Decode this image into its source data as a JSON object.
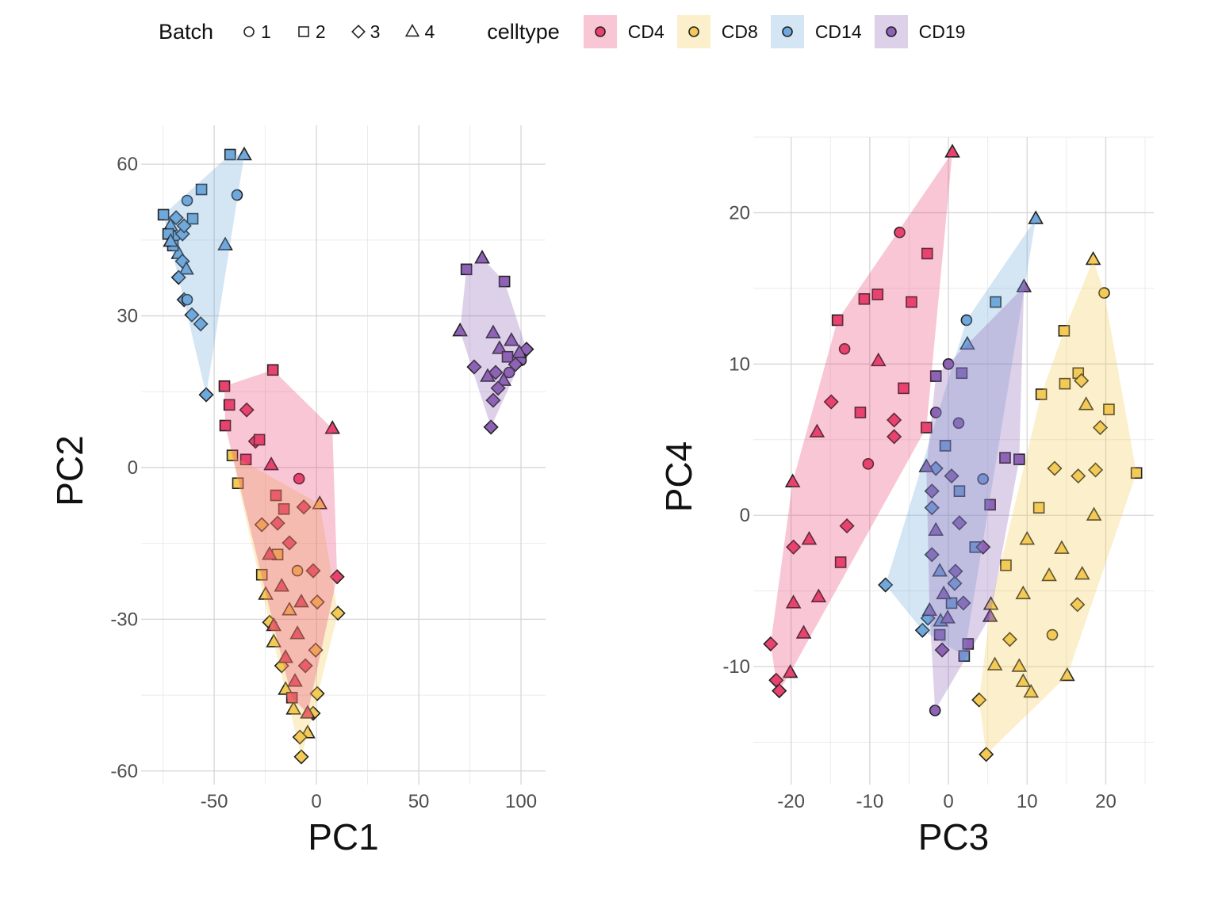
{
  "legend": {
    "batch_title": "Batch",
    "batches": [
      {
        "label": "1",
        "shape": "circle"
      },
      {
        "label": "2",
        "shape": "square"
      },
      {
        "label": "3",
        "shape": "diamond"
      },
      {
        "label": "4",
        "shape": "triangle"
      }
    ],
    "celltype_title": "celltype",
    "celltypes": [
      {
        "label": "CD4",
        "color": "#E8436F"
      },
      {
        "label": "CD8",
        "color": "#F2CA55"
      },
      {
        "label": "CD14",
        "color": "#6FA8DC"
      },
      {
        "label": "CD19",
        "color": "#8E63B5"
      }
    ]
  },
  "chart_data": [
    {
      "type": "scatter",
      "xlabel": "PC1",
      "ylabel": "PC2",
      "xlim": [
        -85.7,
        112
      ],
      "ylim": [
        -62.7,
        67.7
      ],
      "xticks": [
        -50,
        0,
        50,
        100
      ],
      "yticks": [
        -60,
        -30,
        0,
        30,
        60
      ],
      "xminor": [
        -75,
        -25,
        25,
        75
      ],
      "yminor": [
        -45,
        -15,
        15,
        45
      ],
      "grid": true,
      "hulls": true,
      "series": [
        {
          "celltype": "CD14",
          "points": [
            [
              -42.2,
              61.9,
              2
            ],
            [
              -35.3,
              61.8,
              4
            ],
            [
              -56.2,
              55.0,
              2
            ],
            [
              -63.2,
              52.8,
              1
            ],
            [
              -38.8,
              53.9,
              1
            ],
            [
              -74.8,
              50.0,
              2
            ],
            [
              -60.5,
              49.2,
              2
            ],
            [
              -44.6,
              44.0,
              4
            ],
            [
              -53.9,
              14.4,
              3
            ],
            [
              -60.9,
              30.2,
              3
            ],
            [
              -56.6,
              28.4,
              3
            ],
            [
              -64.7,
              33.2,
              3
            ],
            [
              -63.2,
              33.2,
              1
            ],
            [
              -71.3,
              47.8,
              4
            ],
            [
              -69.4,
              45.5,
              3
            ],
            [
              -67.4,
              42.3,
              4
            ],
            [
              -65.5,
              40.8,
              3
            ],
            [
              -70.2,
              43.9,
              2
            ],
            [
              -63.6,
              39.2,
              4
            ],
            [
              -67.4,
              37.6,
              3
            ],
            [
              -72.5,
              46.2,
              2
            ],
            [
              -65.5,
              46.2,
              3
            ],
            [
              -68.6,
              49.4,
              3
            ],
            [
              -64.7,
              47.8,
              3
            ],
            [
              -71.3,
              44.7,
              4
            ]
          ]
        },
        {
          "celltype": "CD19",
          "points": [
            [
              81.0,
              41.4,
              4
            ],
            [
              73.3,
              39.2,
              2
            ],
            [
              91.9,
              36.8,
              2
            ],
            [
              70.2,
              27.0,
              4
            ],
            [
              77.1,
              19.9,
              3
            ],
            [
              85.3,
              8.0,
              3
            ],
            [
              86.4,
              26.6,
              4
            ],
            [
              102.7,
              23.4,
              3
            ],
            [
              100.0,
              21.2,
              1
            ],
            [
              89.5,
              23.5,
              4
            ],
            [
              93.4,
              21.9,
              2
            ],
            [
              87.6,
              18.8,
              3
            ],
            [
              95.3,
              25.1,
              4
            ],
            [
              97.3,
              20.4,
              3
            ],
            [
              91.5,
              17.2,
              4
            ],
            [
              88.8,
              15.7,
              3
            ],
            [
              86.4,
              13.3,
              3
            ],
            [
              99.2,
              22.7,
              4
            ],
            [
              83.7,
              18.0,
              4
            ],
            [
              94.2,
              18.8,
              1
            ]
          ]
        },
        {
          "celltype": "CD8",
          "points": [
            [
              -41.1,
              2.4,
              2
            ],
            [
              -38.4,
              -3.1,
              2
            ],
            [
              10.5,
              -28.8,
              3
            ],
            [
              1.6,
              -7.2,
              4
            ],
            [
              -7.4,
              -57.2,
              3
            ],
            [
              -26.7,
              -11.3,
              3
            ],
            [
              -26.7,
              -21.2,
              2
            ],
            [
              -24.8,
              -25.1,
              4
            ],
            [
              -22.9,
              -30.6,
              3
            ],
            [
              -20.9,
              -34.5,
              4
            ],
            [
              -17.0,
              -39.2,
              3
            ],
            [
              -15.1,
              -43.9,
              4
            ],
            [
              -11.2,
              -47.8,
              4
            ],
            [
              -4.3,
              -52.5,
              4
            ],
            [
              -8.1,
              -53.3,
              3
            ],
            [
              -1.6,
              -48.6,
              3
            ],
            [
              0.4,
              -44.7,
              3
            ],
            [
              -0.4,
              -36.1,
              3
            ],
            [
              0.4,
              -26.6,
              3
            ],
            [
              -9.3,
              -20.4,
              1
            ],
            [
              -19.0,
              -17.2,
              2
            ],
            [
              -13.2,
              -28.2,
              4
            ]
          ]
        },
        {
          "celltype": "CD4",
          "points": [
            [
              -21.3,
              19.3,
              2
            ],
            [
              -45.0,
              16.1,
              2
            ],
            [
              -42.6,
              12.4,
              2
            ],
            [
              -34.1,
              11.4,
              3
            ],
            [
              -44.6,
              8.3,
              2
            ],
            [
              -29.8,
              5.2,
              3
            ],
            [
              -27.9,
              5.5,
              2
            ],
            [
              7.8,
              7.7,
              4
            ],
            [
              -22.1,
              0.5,
              4
            ],
            [
              -8.5,
              -2.2,
              1
            ],
            [
              -34.5,
              1.6,
              2
            ],
            [
              10.1,
              -21.6,
              3
            ],
            [
              -19.8,
              -5.5,
              2
            ],
            [
              -15.9,
              -8.2,
              2
            ],
            [
              -6.2,
              -7.8,
              3
            ],
            [
              -19.0,
              -11.0,
              3
            ],
            [
              -13.2,
              -14.9,
              3
            ],
            [
              -22.9,
              -17.2,
              4
            ],
            [
              -1.6,
              -20.4,
              3
            ],
            [
              -17.0,
              -23.5,
              4
            ],
            [
              -7.4,
              -26.6,
              4
            ],
            [
              -20.9,
              -31.3,
              4
            ],
            [
              -9.3,
              -32.9,
              4
            ],
            [
              -15.1,
              -37.6,
              4
            ],
            [
              -5.4,
              -39.2,
              3
            ],
            [
              -10.5,
              -42.3,
              4
            ],
            [
              -4.3,
              -48.6,
              4
            ],
            [
              -12.0,
              -45.5,
              2
            ]
          ]
        }
      ]
    },
    {
      "type": "scatter",
      "xlabel": "PC3",
      "ylabel": "PC4",
      "xlim": [
        -24.8,
        26.1
      ],
      "ylim": [
        -17.8,
        25.0
      ],
      "xticks": [
        -20,
        -10,
        0,
        10,
        20
      ],
      "yticks": [
        -10,
        0,
        10,
        20
      ],
      "xminor": [
        -15,
        -5,
        5,
        15,
        25
      ],
      "yminor": [
        -15,
        -5,
        5,
        15,
        25
      ],
      "grid": true,
      "hulls": true,
      "series": [
        {
          "celltype": "CD4",
          "points": [
            [
              0.5,
              24.0,
              4
            ],
            [
              -6.2,
              18.7,
              1
            ],
            [
              -2.7,
              17.3,
              2
            ],
            [
              -14.1,
              12.9,
              2
            ],
            [
              -4.7,
              14.1,
              2
            ],
            [
              -9.0,
              14.6,
              2
            ],
            [
              -10.7,
              14.3,
              2
            ],
            [
              -22.6,
              -8.5,
              3
            ],
            [
              -21.5,
              -11.6,
              3
            ],
            [
              -21.9,
              -10.9,
              3
            ],
            [
              -20.1,
              -10.4,
              4
            ],
            [
              -19.8,
              2.2,
              4
            ],
            [
              -18.4,
              -7.8,
              4
            ],
            [
              -16.7,
              5.5,
              4
            ],
            [
              -13.2,
              11.0,
              1
            ],
            [
              -8.9,
              10.2,
              4
            ],
            [
              -5.7,
              8.4,
              2
            ],
            [
              -2.8,
              5.8,
              2
            ],
            [
              -12.9,
              -0.7,
              3
            ],
            [
              -13.7,
              -3.1,
              2
            ],
            [
              -16.5,
              -5.4,
              4
            ],
            [
              -17.7,
              -1.6,
              4
            ],
            [
              -19.7,
              -2.1,
              3
            ],
            [
              -10.2,
              3.4,
              1
            ],
            [
              -14.9,
              7.5,
              3
            ],
            [
              -11.2,
              6.8,
              2
            ],
            [
              -6.9,
              6.3,
              3
            ],
            [
              -6.9,
              5.2,
              3
            ],
            [
              -19.7,
              -5.8,
              4
            ]
          ]
        },
        {
          "celltype": "CD8",
          "points": [
            [
              18.4,
              16.9,
              4
            ],
            [
              19.8,
              14.7,
              1
            ],
            [
              14.7,
              12.2,
              2
            ],
            [
              23.9,
              2.8,
              2
            ],
            [
              20.4,
              7.0,
              2
            ],
            [
              4.8,
              -15.8,
              3
            ],
            [
              3.9,
              -12.2,
              3
            ],
            [
              5.9,
              -9.9,
              4
            ],
            [
              10.5,
              -11.7,
              4
            ],
            [
              15.1,
              -10.6,
              4
            ],
            [
              13.2,
              -7.9,
              1
            ],
            [
              7.8,
              -8.2,
              3
            ],
            [
              5.4,
              -5.9,
              4
            ],
            [
              16.4,
              -5.9,
              3
            ],
            [
              17.0,
              -3.9,
              4
            ],
            [
              12.8,
              -4.0,
              4
            ],
            [
              9.5,
              -5.2,
              4
            ],
            [
              14.4,
              -2.2,
              4
            ],
            [
              18.5,
              0.0,
              4
            ],
            [
              16.5,
              2.6,
              3
            ],
            [
              13.5,
              3.1,
              3
            ],
            [
              11.5,
              0.5,
              2
            ],
            [
              10.0,
              -1.6,
              4
            ],
            [
              7.3,
              -3.3,
              2
            ],
            [
              18.7,
              3.0,
              3
            ],
            [
              19.3,
              5.8,
              3
            ],
            [
              16.5,
              9.4,
              2
            ],
            [
              16.9,
              8.9,
              3
            ],
            [
              14.8,
              8.7,
              2
            ],
            [
              11.8,
              8.0,
              2
            ],
            [
              17.5,
              7.3,
              4
            ],
            [
              9.0,
              -10.0,
              4
            ],
            [
              9.5,
              -11.0,
              4
            ]
          ]
        },
        {
          "celltype": "CD14",
          "points": [
            [
              11.1,
              19.6,
              4
            ],
            [
              6.0,
              14.1,
              2
            ],
            [
              2.3,
              12.9,
              1
            ],
            [
              2.4,
              11.3,
              4
            ],
            [
              -8.0,
              -4.6,
              3
            ],
            [
              -3.3,
              -7.6,
              3
            ],
            [
              2.0,
              -9.3,
              2
            ],
            [
              -1.6,
              3.1,
              3
            ],
            [
              -0.4,
              4.6,
              2
            ],
            [
              4.4,
              2.4,
              1
            ],
            [
              -2.1,
              0.5,
              3
            ],
            [
              -1.1,
              -3.7,
              4
            ],
            [
              -2.6,
              -6.8,
              3
            ],
            [
              0.4,
              -5.8,
              2
            ],
            [
              3.4,
              -2.1,
              2
            ],
            [
              1.4,
              1.6,
              2
            ],
            [
              -1.0,
              -7.0,
              4
            ],
            [
              0.8,
              -4.5,
              3
            ]
          ]
        },
        {
          "celltype": "CD19",
          "points": [
            [
              9.6,
              15.1,
              4
            ],
            [
              0.0,
              10.0,
              1
            ],
            [
              -1.6,
              6.8,
              1
            ],
            [
              1.3,
              6.1,
              1
            ],
            [
              -1.6,
              9.2,
              2
            ],
            [
              1.7,
              9.4,
              2
            ],
            [
              -1.7,
              -12.9,
              1
            ],
            [
              2.5,
              -8.5,
              2
            ],
            [
              -2.8,
              3.2,
              4
            ],
            [
              5.3,
              -6.7,
              4
            ],
            [
              7.2,
              3.8,
              2
            ],
            [
              9.0,
              3.7,
              2
            ],
            [
              5.3,
              0.7,
              2
            ],
            [
              4.4,
              -2.1,
              3
            ],
            [
              -2.1,
              -2.6,
              3
            ],
            [
              -0.6,
              -5.2,
              4
            ],
            [
              -0.8,
              -8.9,
              3
            ],
            [
              1.4,
              -0.5,
              3
            ],
            [
              0.4,
              2.6,
              3
            ],
            [
              -2.1,
              1.6,
              3
            ],
            [
              -1.6,
              -1.0,
              4
            ],
            [
              0.9,
              -3.7,
              3
            ],
            [
              -2.4,
              -6.3,
              4
            ],
            [
              1.9,
              -5.8,
              3
            ],
            [
              -1.1,
              -7.9,
              2
            ],
            [
              -0.1,
              -6.8,
              4
            ]
          ]
        }
      ]
    }
  ]
}
